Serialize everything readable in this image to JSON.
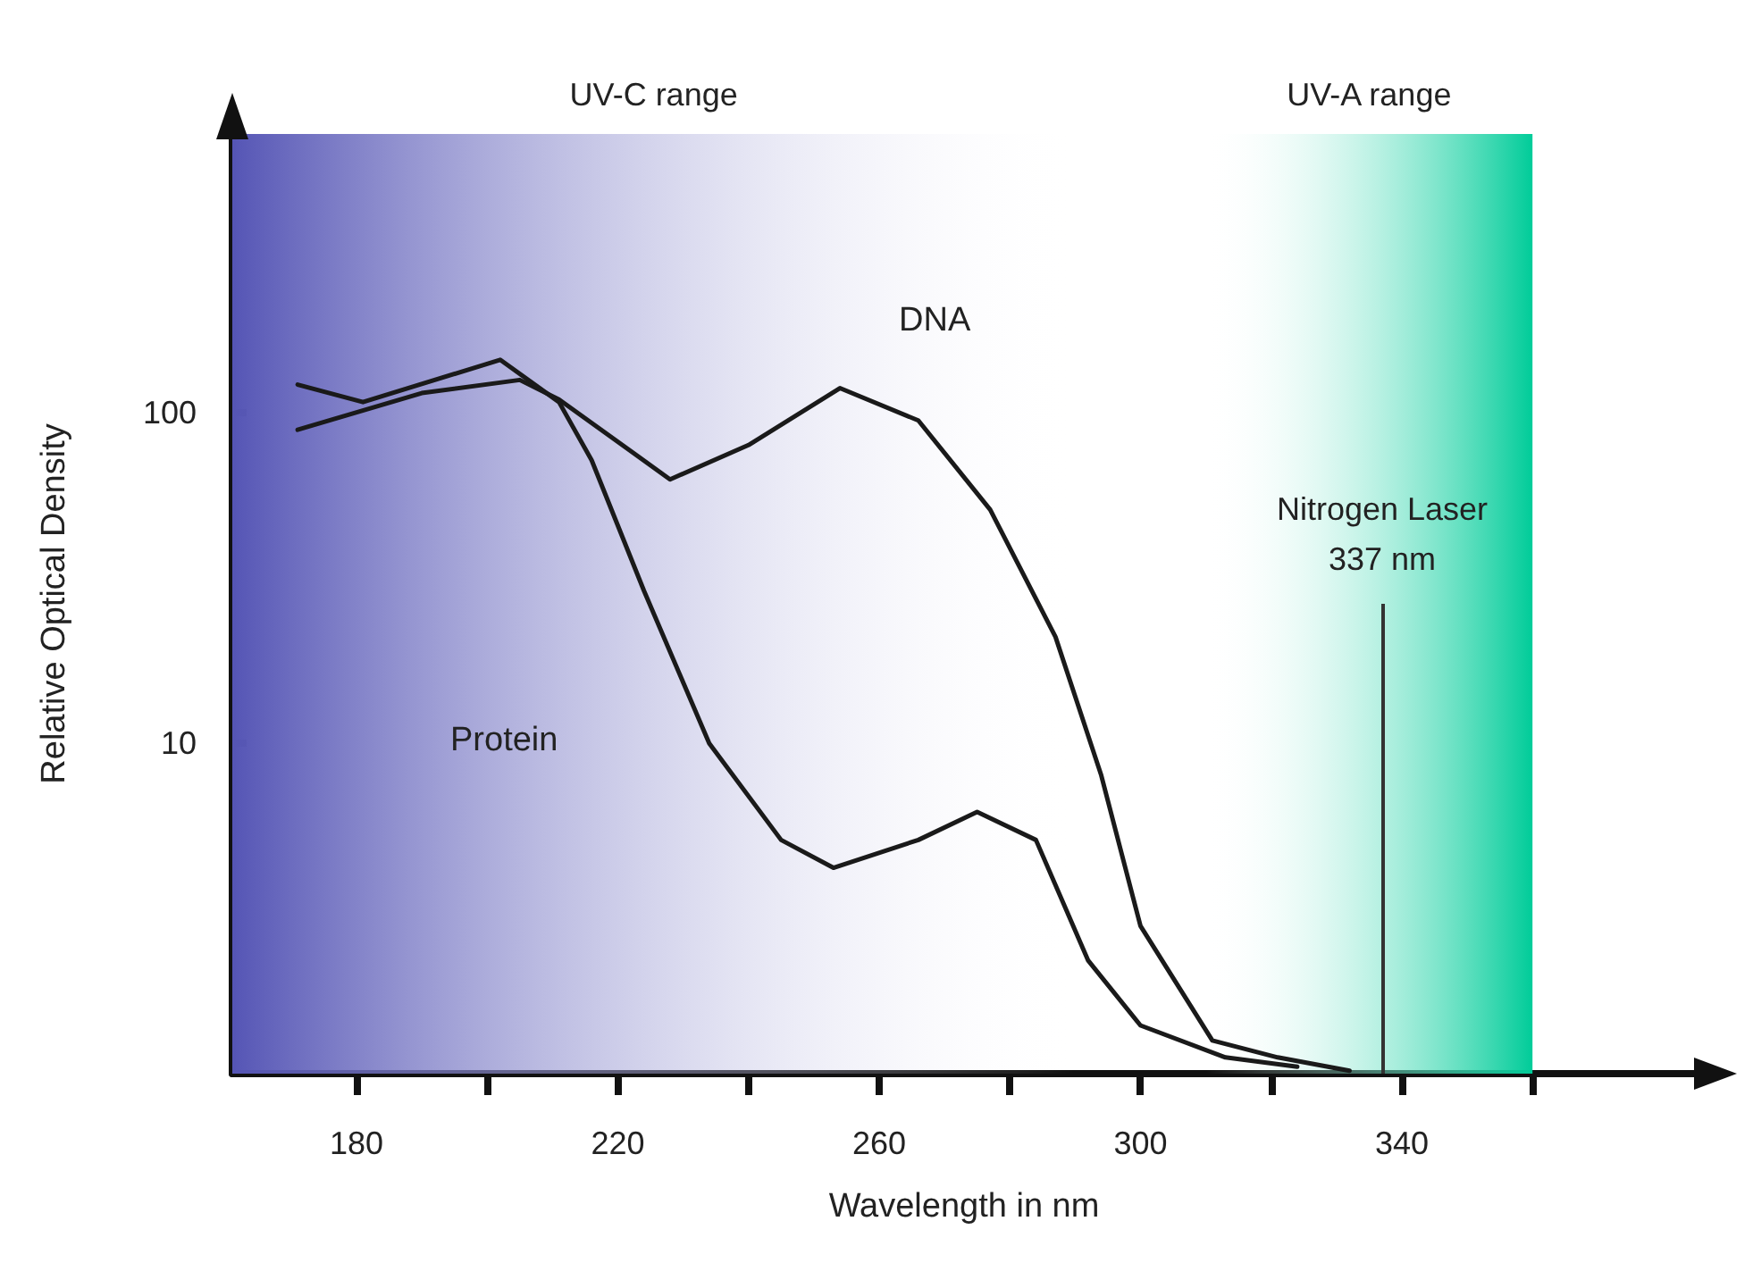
{
  "chart_data": {
    "type": "line",
    "xlabel": "Wavelength in nm",
    "ylabel": "Relative Optical Density",
    "log": "y",
    "grid": false,
    "marker": "none",
    "line_style": "solid",
    "xlim": [
      161,
      385
    ],
    "xticks": [
      180,
      {
        "value": 200,
        "label": null
      },
      220,
      {
        "value": 240,
        "label": null
      },
      260,
      {
        "value": 280,
        "label": null
      },
      300,
      {
        "value": 320,
        "label": null
      },
      340,
      {
        "value": 360,
        "label": null
      }
    ],
    "ylim": [
      1,
      700
    ],
    "yticks": [
      10,
      100
    ],
    "series": [
      {
        "color": "#1a1a1a",
        "x": [
          171,
          190,
          205,
          211,
          228,
          240,
          254,
          266,
          277,
          287,
          294,
          300,
          311,
          321,
          332
        ],
        "values": [
          89,
          115,
          126,
          110,
          63,
          80,
          119,
          95,
          51,
          21,
          8.0,
          2.8,
          1.26,
          1.12,
          1.02
        ]
      },
      {
        "color": "#1a1a1a",
        "x": [
          171,
          181,
          202,
          211,
          216,
          224,
          234,
          245,
          253,
          266,
          275,
          284,
          292,
          300,
          313,
          324
        ],
        "values": [
          122,
          108,
          145,
          108,
          72,
          29,
          10,
          5.1,
          4.2,
          5.1,
          6.2,
          5.1,
          2.2,
          1.4,
          1.12,
          1.05
        ]
      }
    ],
    "bands": [
      {
        "axis": "x",
        "from": 161,
        "to": 290,
        "label": "UV-C range",
        "color": "#5555b5"
      },
      {
        "axis": "x",
        "from": 310,
        "to": 360,
        "label": "UV-A range",
        "color": "#00cc99"
      }
    ],
    "ref_lines": [
      {
        "axis": "x",
        "value": 337,
        "label": "Nitrogen Laser\n337 nm",
        "color": "#333333"
      }
    ],
    "annotations": [
      "DNA",
      "Protein"
    ]
  }
}
